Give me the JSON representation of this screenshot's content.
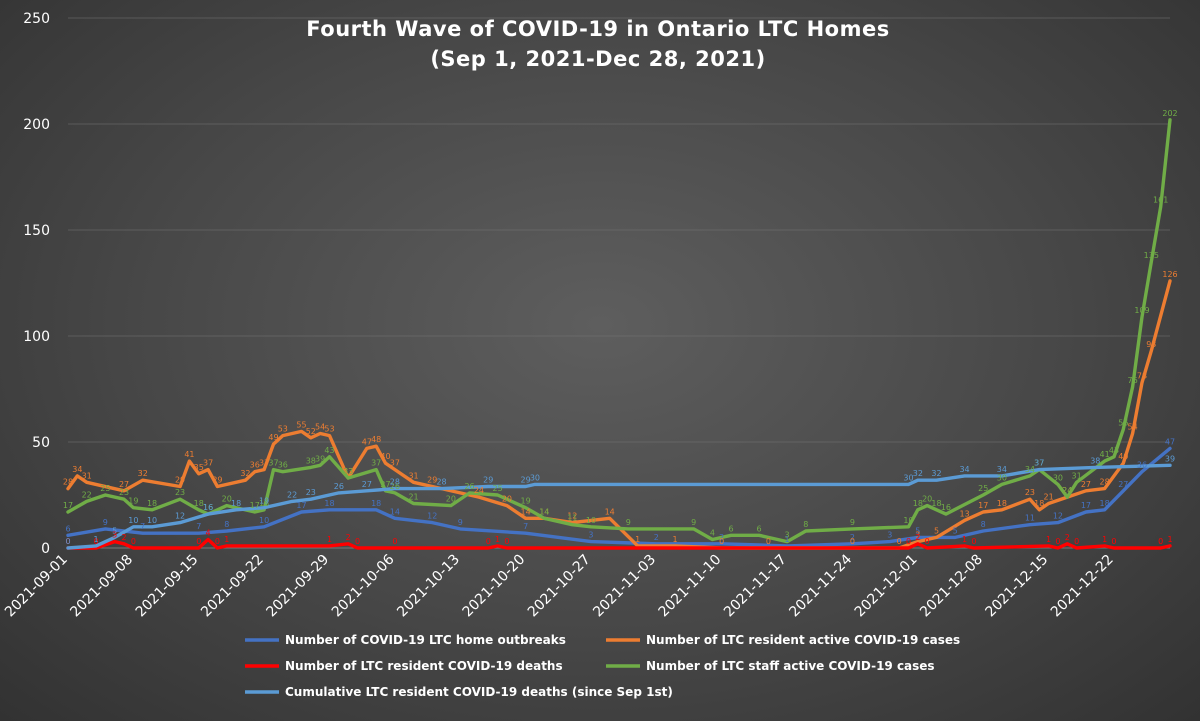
{
  "chart_data": {
    "type": "line",
    "title": "Fourth Wave of COVID-19 in Ontario LTC Homes",
    "subtitle": "(Sep 1, 2021-Dec 28, 2021)",
    "xlabel": "",
    "ylabel": "",
    "ylim": [
      0,
      250
    ],
    "yticks": [
      0,
      50,
      100,
      150,
      200,
      250
    ],
    "grid": true,
    "legend_position": "bottom",
    "x_tick_labels": [
      "2021-09-01",
      "2021-09-08",
      "2021-09-15",
      "2021-09-22",
      "2021-09-29",
      "2021-10-06",
      "2021-10-13",
      "2021-10-20",
      "2021-10-27",
      "2021-11-03",
      "2021-11-10",
      "2021-11-17",
      "2021-11-24",
      "2021-12-01",
      "2021-12-08",
      "2021-12-15",
      "2021-12-22"
    ],
    "series": [
      {
        "name": "Number of COVID-19 LTC home outbreaks",
        "color": "#4472c4",
        "points": [
          [
            "2021-09-01",
            6
          ],
          [
            "2021-09-05",
            9
          ],
          [
            "2021-09-09",
            7
          ],
          [
            "2021-09-15",
            7
          ],
          [
            "2021-09-18",
            8
          ],
          [
            "2021-09-22",
            10
          ],
          [
            "2021-09-26",
            17
          ],
          [
            "2021-09-29",
            18
          ],
          [
            "2021-10-04",
            18
          ],
          [
            "2021-10-06",
            14
          ],
          [
            "2021-10-10",
            12
          ],
          [
            "2021-10-13",
            9
          ],
          [
            "2021-10-20",
            7
          ],
          [
            "2021-10-27",
            3
          ],
          [
            "2021-11-03",
            2
          ],
          [
            "2021-11-10",
            2
          ],
          [
            "2021-11-17",
            1
          ],
          [
            "2021-11-24",
            2
          ],
          [
            "2021-11-28",
            3
          ],
          [
            "2021-12-01",
            5
          ],
          [
            "2021-12-05",
            5
          ],
          [
            "2021-12-08",
            8
          ],
          [
            "2021-12-13",
            11
          ],
          [
            "2021-12-16",
            12
          ],
          [
            "2021-12-19",
            17
          ],
          [
            "2021-12-21",
            18
          ],
          [
            "2021-12-23",
            27
          ],
          [
            "2021-12-25",
            36
          ],
          [
            "2021-12-28",
            47
          ]
        ]
      },
      {
        "name": "Number of LTC resident active COVID-19 cases",
        "color": "#ed7d31",
        "points": [
          [
            "2021-09-01",
            28
          ],
          [
            "2021-09-02",
            34
          ],
          [
            "2021-09-03",
            31
          ],
          [
            "2021-09-07",
            27
          ],
          [
            "2021-09-09",
            32
          ],
          [
            "2021-09-13",
            29
          ],
          [
            "2021-09-14",
            41
          ],
          [
            "2021-09-15",
            35
          ],
          [
            "2021-09-16",
            37
          ],
          [
            "2021-09-17",
            29
          ],
          [
            "2021-09-20",
            32
          ],
          [
            "2021-09-21",
            36
          ],
          [
            "2021-09-22",
            37
          ],
          [
            "2021-09-23",
            49
          ],
          [
            "2021-09-24",
            53
          ],
          [
            "2021-09-26",
            55
          ],
          [
            "2021-09-27",
            52
          ],
          [
            "2021-09-28",
            54
          ],
          [
            "2021-09-29",
            53
          ],
          [
            "2021-10-01",
            33
          ],
          [
            "2021-10-03",
            47
          ],
          [
            "2021-10-04",
            48
          ],
          [
            "2021-10-05",
            40
          ],
          [
            "2021-10-06",
            37
          ],
          [
            "2021-10-08",
            31
          ],
          [
            "2021-10-10",
            29
          ],
          [
            "2021-10-15",
            24
          ],
          [
            "2021-10-18",
            20
          ],
          [
            "2021-10-20",
            14
          ],
          [
            "2021-10-22",
            14
          ],
          [
            "2021-10-25",
            12
          ],
          [
            "2021-10-29",
            14
          ],
          [
            "2021-11-01",
            1
          ],
          [
            "2021-11-05",
            1
          ],
          [
            "2021-11-10",
            0
          ],
          [
            "2021-11-15",
            0
          ],
          [
            "2021-11-24",
            0
          ],
          [
            "2021-11-29",
            0
          ],
          [
            "2021-12-01",
            3
          ],
          [
            "2021-12-03",
            5
          ],
          [
            "2021-12-06",
            13
          ],
          [
            "2021-12-08",
            17
          ],
          [
            "2021-12-10",
            18
          ],
          [
            "2021-12-13",
            23
          ],
          [
            "2021-12-14",
            18
          ],
          [
            "2021-12-15",
            21
          ],
          [
            "2021-12-17",
            24
          ],
          [
            "2021-12-19",
            27
          ],
          [
            "2021-12-21",
            28
          ],
          [
            "2021-12-23",
            40
          ],
          [
            "2021-12-24",
            54
          ],
          [
            "2021-12-25",
            78
          ],
          [
            "2021-12-26",
            93
          ],
          [
            "2021-12-28",
            126
          ]
        ]
      },
      {
        "name": "Number of LTC resident COVID-19 deaths",
        "color": "#ff0000",
        "points": [
          [
            "2021-09-01",
            0
          ],
          [
            "2021-09-04",
            0
          ],
          [
            "2021-09-06",
            3
          ],
          [
            "2021-09-07",
            2
          ],
          [
            "2021-09-08",
            0
          ],
          [
            "2021-09-15",
            0
          ],
          [
            "2021-09-16",
            4
          ],
          [
            "2021-09-17",
            0
          ],
          [
            "2021-09-18",
            1
          ],
          [
            "2021-09-29",
            1
          ],
          [
            "2021-10-01",
            2
          ],
          [
            "2021-10-02",
            0
          ],
          [
            "2021-10-06",
            0
          ],
          [
            "2021-10-16",
            0
          ],
          [
            "2021-10-17",
            1
          ],
          [
            "2021-10-18",
            0
          ],
          [
            "2021-11-30",
            0
          ],
          [
            "2021-12-01",
            2
          ],
          [
            "2021-12-02",
            0
          ],
          [
            "2021-12-06",
            1
          ],
          [
            "2021-12-07",
            0
          ],
          [
            "2021-12-15",
            1
          ],
          [
            "2021-12-16",
            0
          ],
          [
            "2021-12-17",
            2
          ],
          [
            "2021-12-18",
            0
          ],
          [
            "2021-12-21",
            1
          ],
          [
            "2021-12-22",
            0
          ],
          [
            "2021-12-27",
            0
          ],
          [
            "2021-12-28",
            1
          ]
        ]
      },
      {
        "name": "Number of LTC staff active COVID-19 cases",
        "color": "#70ad47",
        "points": [
          [
            "2021-09-01",
            17
          ],
          [
            "2021-09-03",
            22
          ],
          [
            "2021-09-05",
            25
          ],
          [
            "2021-09-07",
            23
          ],
          [
            "2021-09-08",
            19
          ],
          [
            "2021-09-10",
            18
          ],
          [
            "2021-09-13",
            23
          ],
          [
            "2021-09-15",
            18
          ],
          [
            "2021-09-16",
            16
          ],
          [
            "2021-09-18",
            20
          ],
          [
            "2021-09-21",
            17
          ],
          [
            "2021-09-22",
            18
          ],
          [
            "2021-09-23",
            37
          ],
          [
            "2021-09-24",
            36
          ],
          [
            "2021-09-27",
            38
          ],
          [
            "2021-09-28",
            39
          ],
          [
            "2021-09-29",
            43
          ],
          [
            "2021-10-01",
            33
          ],
          [
            "2021-10-04",
            37
          ],
          [
            "2021-10-05",
            27
          ],
          [
            "2021-10-06",
            26
          ],
          [
            "2021-10-08",
            21
          ],
          [
            "2021-10-12",
            20
          ],
          [
            "2021-10-14",
            26
          ],
          [
            "2021-10-17",
            25
          ],
          [
            "2021-10-20",
            19
          ],
          [
            "2021-10-22",
            14
          ],
          [
            "2021-10-25",
            11
          ],
          [
            "2021-10-27",
            10
          ],
          [
            "2021-10-31",
            9
          ],
          [
            "2021-11-07",
            9
          ],
          [
            "2021-11-09",
            4
          ],
          [
            "2021-11-11",
            6
          ],
          [
            "2021-11-14",
            6
          ],
          [
            "2021-11-17",
            3
          ],
          [
            "2021-11-19",
            8
          ],
          [
            "2021-11-24",
            9
          ],
          [
            "2021-11-30",
            10
          ],
          [
            "2021-12-01",
            18
          ],
          [
            "2021-12-02",
            20
          ],
          [
            "2021-12-03",
            18
          ],
          [
            "2021-12-04",
            16
          ],
          [
            "2021-12-08",
            25
          ],
          [
            "2021-12-10",
            30
          ],
          [
            "2021-12-13",
            34
          ],
          [
            "2021-12-14",
            37
          ],
          [
            "2021-12-16",
            30
          ],
          [
            "2021-12-17",
            24
          ],
          [
            "2021-12-18",
            31
          ],
          [
            "2021-12-21",
            41
          ],
          [
            "2021-12-22",
            43
          ],
          [
            "2021-12-23",
            56
          ],
          [
            "2021-12-24",
            76
          ],
          [
            "2021-12-25",
            109
          ],
          [
            "2021-12-26",
            135
          ],
          [
            "2021-12-27",
            161
          ],
          [
            "2021-12-28",
            202
          ]
        ]
      },
      {
        "name": "Cumulative LTC resident COVID-19 deaths (since Sep 1st)",
        "color": "#5b9bd5",
        "points": [
          [
            "2021-09-01",
            0
          ],
          [
            "2021-09-04",
            1
          ],
          [
            "2021-09-06",
            5
          ],
          [
            "2021-09-08",
            10
          ],
          [
            "2021-09-10",
            10
          ],
          [
            "2021-09-13",
            12
          ],
          [
            "2021-09-16",
            16
          ],
          [
            "2021-09-19",
            18
          ],
          [
            "2021-09-22",
            19
          ],
          [
            "2021-09-25",
            22
          ],
          [
            "2021-09-27",
            23
          ],
          [
            "2021-09-30",
            26
          ],
          [
            "2021-10-03",
            27
          ],
          [
            "2021-10-06",
            28
          ],
          [
            "2021-10-11",
            28
          ],
          [
            "2021-10-16",
            29
          ],
          [
            "2021-10-20",
            29
          ],
          [
            "2021-10-21",
            30
          ],
          [
            "2021-11-30",
            30
          ],
          [
            "2021-12-01",
            32
          ],
          [
            "2021-12-03",
            32
          ],
          [
            "2021-12-06",
            34
          ],
          [
            "2021-12-10",
            34
          ],
          [
            "2021-12-14",
            37
          ],
          [
            "2021-12-20",
            38
          ],
          [
            "2021-12-28",
            39
          ]
        ]
      }
    ]
  }
}
